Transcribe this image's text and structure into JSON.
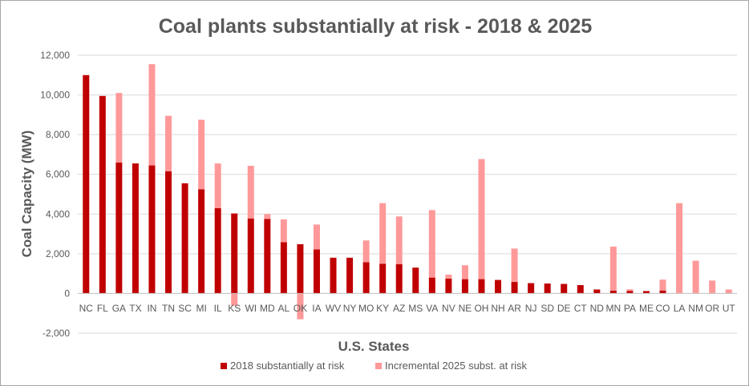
{
  "chart_data": {
    "type": "bar",
    "stacked": true,
    "title": "Coal plants substantially at risk - 2018 & 2025",
    "xlabel": "U.S. States",
    "ylabel": "Coal Capacity (MW)",
    "ylim": [
      -2000,
      12000
    ],
    "yticks": [
      -2000,
      0,
      2000,
      4000,
      6000,
      8000,
      10000,
      12000
    ],
    "ytick_labels": [
      "-2,000",
      "0",
      "2,000",
      "4,000",
      "6,000",
      "8,000",
      "10,000",
      "12,000"
    ],
    "grid": true,
    "legend_position": "bottom",
    "categories": [
      "NC",
      "FL",
      "GA",
      "TX",
      "IN",
      "TN",
      "SC",
      "MI",
      "IL",
      "KS",
      "WI",
      "MD",
      "AL",
      "OK",
      "IA",
      "WV",
      "NY",
      "MO",
      "KY",
      "AZ",
      "MS",
      "VA",
      "NV",
      "NE",
      "OH",
      "NH",
      "AR",
      "NJ",
      "SD",
      "DE",
      "CT",
      "ND",
      "MN",
      "PA",
      "ME",
      "CO",
      "LA",
      "NM",
      "OR",
      "UT"
    ],
    "series": [
      {
        "name": "2018 substantially at risk",
        "color": "#c00000",
        "values": [
          11000,
          9950,
          6600,
          6550,
          6450,
          6150,
          5550,
          5250,
          4300,
          4030,
          3780,
          3750,
          2580,
          2480,
          2220,
          1800,
          1800,
          1570,
          1500,
          1480,
          1300,
          800,
          750,
          720,
          720,
          680,
          580,
          520,
          500,
          480,
          420,
          200,
          140,
          130,
          120,
          150,
          0,
          0,
          0,
          0
        ]
      },
      {
        "name": "Incremental 2025 subst. at risk",
        "color": "#ff9999",
        "values": [
          0,
          0,
          3500,
          0,
          5100,
          2800,
          0,
          3500,
          2250,
          -620,
          2650,
          250,
          1150,
          -1300,
          1250,
          0,
          0,
          1100,
          3050,
          2400,
          0,
          3400,
          200,
          700,
          6050,
          0,
          1680,
          0,
          0,
          0,
          0,
          0,
          2220,
          80,
          0,
          550,
          4550,
          1650,
          650,
          200
        ]
      }
    ]
  }
}
